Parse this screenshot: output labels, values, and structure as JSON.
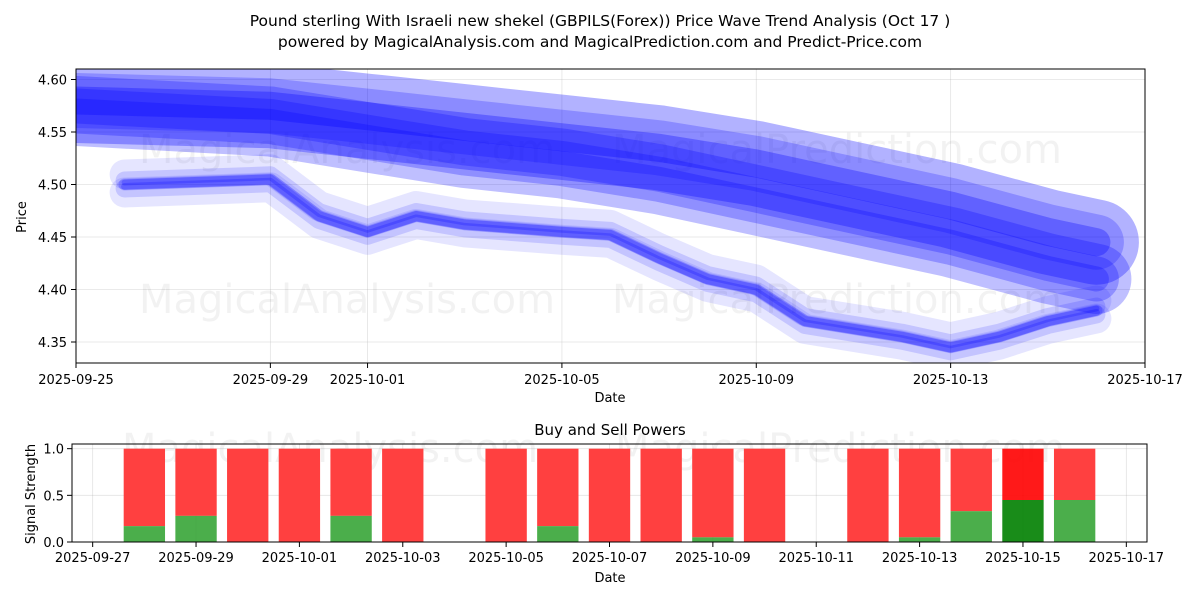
{
  "chart_data": [
    {
      "type": "area",
      "title": "Pound sterling With Israeli new shekel (GBPILS(Forex)) Price Wave Trend Analysis (Oct 17 )",
      "subtitle": "powered by MagicalAnalysis.com and MagicalPrediction.com and Predict-Price.com",
      "xlabel": "Date",
      "ylabel": "Price",
      "xlim": [
        "2025-09-25",
        "2025-10-17"
      ],
      "ylim": [
        4.33,
        4.61
      ],
      "x_ticks": [
        "2025-09-25",
        "2025-09-29",
        "2025-10-01",
        "2025-10-05",
        "2025-10-09",
        "2025-10-13",
        "2025-10-17"
      ],
      "y_ticks": [
        "4.35",
        "4.40",
        "4.45",
        "4.50",
        "4.55",
        "4.60"
      ],
      "color": "#0000ff",
      "grid": true,
      "series": [
        {
          "name": "upper-wave",
          "x": [
            "2025-09-25",
            "2025-09-29",
            "2025-10-01",
            "2025-10-03",
            "2025-10-05",
            "2025-10-07",
            "2025-10-09",
            "2025-10-11",
            "2025-10-13",
            "2025-10-15",
            "2025-10-16"
          ],
          "values": [
            4.58,
            4.575,
            4.565,
            4.555,
            4.545,
            4.535,
            4.52,
            4.5,
            4.48,
            4.455,
            4.445
          ]
        },
        {
          "name": "mid-wave",
          "x": [
            "2025-09-25",
            "2025-09-29",
            "2025-10-01",
            "2025-10-03",
            "2025-10-05",
            "2025-10-07",
            "2025-10-09",
            "2025-10-11",
            "2025-10-13",
            "2025-10-15",
            "2025-10-16"
          ],
          "values": [
            4.57,
            4.56,
            4.545,
            4.53,
            4.52,
            4.505,
            4.485,
            4.465,
            4.445,
            4.42,
            4.41
          ]
        },
        {
          "name": "price-wave",
          "x": [
            "2025-09-26",
            "2025-09-29",
            "2025-09-30",
            "2025-10-01",
            "2025-10-02",
            "2025-10-03",
            "2025-10-05",
            "2025-10-06",
            "2025-10-07",
            "2025-10-08",
            "2025-10-09",
            "2025-10-10",
            "2025-10-12",
            "2025-10-13",
            "2025-10-14",
            "2025-10-15",
            "2025-10-16"
          ],
          "values": [
            4.5,
            4.505,
            4.47,
            4.455,
            4.47,
            4.462,
            4.455,
            4.452,
            4.43,
            4.41,
            4.4,
            4.37,
            4.355,
            4.345,
            4.355,
            4.37,
            4.38
          ]
        }
      ],
      "watermarks": [
        "MagicalAnalysis.com",
        "MagicalPrediction.com"
      ]
    },
    {
      "type": "bar",
      "title": "Buy and Sell Powers",
      "xlabel": "Date",
      "ylabel": "Signal Strength",
      "xlim": [
        "2025-09-27",
        "2025-10-17"
      ],
      "ylim": [
        0,
        1.05
      ],
      "x_ticks": [
        "2025-09-27",
        "2025-09-29",
        "2025-10-01",
        "2025-10-03",
        "2025-10-05",
        "2025-10-07",
        "2025-10-09",
        "2025-10-11",
        "2025-10-13",
        "2025-10-15",
        "2025-10-17"
      ],
      "y_ticks": [
        "0.0",
        "0.5",
        "1.0"
      ],
      "categories": [
        "2025-09-28",
        "2025-09-29",
        "2025-09-30",
        "2025-10-01",
        "2025-10-02",
        "2025-10-03",
        "2025-10-05",
        "2025-10-06",
        "2025-10-07",
        "2025-10-08",
        "2025-10-09",
        "2025-10-10",
        "2025-10-12",
        "2025-10-13",
        "2025-10-14",
        "2025-10-15",
        "2025-10-16"
      ],
      "series": [
        {
          "name": "Buy",
          "color": "#2ca02c",
          "values": [
            0.17,
            0.28,
            0,
            0,
            0.28,
            0,
            0,
            0.17,
            0,
            0,
            0.05,
            0,
            0,
            0.05,
            0.33,
            0.45,
            0.45
          ]
        },
        {
          "name": "Sell",
          "color": "#ff4040",
          "values": [
            0.83,
            0.72,
            1,
            1,
            0.72,
            1,
            1,
            0.83,
            1,
            1,
            0.95,
            1,
            1,
            0.95,
            0.67,
            0.55,
            0.55
          ]
        }
      ],
      "highlight_category": "2025-10-15",
      "watermarks": [
        "MagicalAnalysis.com",
        "MagicalPrediction.com"
      ]
    }
  ]
}
